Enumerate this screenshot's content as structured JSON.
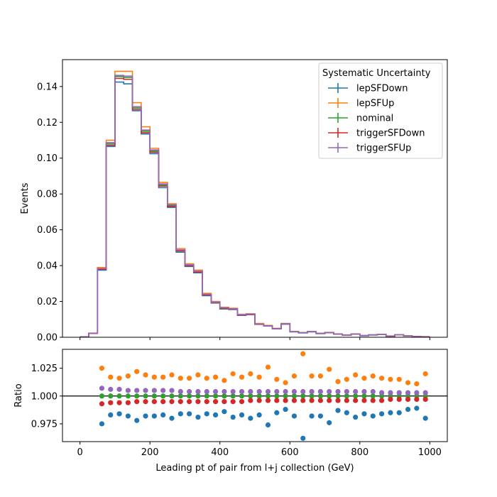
{
  "chart_data": [
    {
      "type": "line",
      "ylabel": "Events",
      "xlabel": "",
      "xlim": [
        -50,
        1050
      ],
      "ylim": [
        0,
        0.155
      ],
      "x_ticks": [
        0,
        200,
        400,
        600,
        800,
        1000
      ],
      "y_ticks": [
        "0.00",
        "0.02",
        "0.04",
        "0.06",
        "0.08",
        "0.10",
        "0.12",
        "0.14"
      ],
      "y_tick_values": [
        0,
        0.02,
        0.04,
        0.06,
        0.08,
        0.1,
        0.12,
        0.14
      ],
      "x_tick_labels_shown": false,
      "bin_edges": [
        0,
        25,
        50,
        75,
        100,
        125,
        150,
        175,
        200,
        225,
        250,
        275,
        300,
        325,
        350,
        375,
        400,
        425,
        450,
        475,
        500,
        525,
        550,
        575,
        600,
        625,
        650,
        675,
        700,
        725,
        750,
        775,
        800,
        825,
        850,
        875,
        900,
        925,
        950,
        975,
        1000
      ],
      "legend": {
        "title": "Systematic Uncertainty",
        "placement": "top-right"
      },
      "series": [
        {
          "name": "lepSFDown",
          "color": "#1f77b4",
          "values": [
            0.0003,
            0.0022,
            0.0375,
            0.1065,
            0.1425,
            0.1415,
            0.1265,
            0.1135,
            0.1025,
            0.0835,
            0.0725,
            0.0475,
            0.0395,
            0.036,
            0.0232,
            0.0191,
            0.0158,
            0.0155,
            0.0122,
            0.0126,
            0.0072,
            0.0063,
            0.0047,
            0.0073,
            0.003,
            0.0024,
            0.003,
            0.002,
            0.0025,
            0.0017,
            0.0012,
            0.0017,
            0.0008,
            0.0012,
            0.0015,
            0.0006,
            0.0013,
            0.0007,
            0.0004,
            0.0003
          ]
        },
        {
          "name": "lepSFUp",
          "color": "#ff7f0e",
          "values": [
            0.0003,
            0.0023,
            0.039,
            0.11,
            0.1485,
            0.1485,
            0.131,
            0.1175,
            0.1055,
            0.0865,
            0.0745,
            0.0495,
            0.041,
            0.0375,
            0.0245,
            0.02,
            0.0168,
            0.0162,
            0.0128,
            0.0131,
            0.0077,
            0.0066,
            0.005,
            0.0077,
            0.0032,
            0.0026,
            0.0032,
            0.0022,
            0.0027,
            0.0018,
            0.0013,
            0.0018,
            0.0009,
            0.0013,
            0.0016,
            0.0007,
            0.0014,
            0.0008,
            0.0005,
            0.0004
          ]
        },
        {
          "name": "nominal",
          "color": "#2ca02c",
          "values": [
            0.0003,
            0.0022,
            0.0382,
            0.108,
            0.1455,
            0.145,
            0.128,
            0.115,
            0.104,
            0.085,
            0.0735,
            0.0485,
            0.0402,
            0.0367,
            0.0238,
            0.0195,
            0.0163,
            0.0158,
            0.0125,
            0.0128,
            0.0074,
            0.0064,
            0.0048,
            0.0075,
            0.0031,
            0.0025,
            0.0031,
            0.0021,
            0.0026,
            0.0018,
            0.0012,
            0.0018,
            0.0009,
            0.0013,
            0.0015,
            0.0006,
            0.0013,
            0.0007,
            0.0004,
            0.0003
          ]
        },
        {
          "name": "triggerSFDown",
          "color": "#d62728",
          "values": [
            0.0003,
            0.0022,
            0.038,
            0.1072,
            0.1445,
            0.144,
            0.1272,
            0.1142,
            0.1033,
            0.0844,
            0.073,
            0.0482,
            0.04,
            0.0365,
            0.0236,
            0.0194,
            0.0162,
            0.0157,
            0.0124,
            0.0127,
            0.0073,
            0.0063,
            0.0048,
            0.0074,
            0.0031,
            0.0025,
            0.0031,
            0.0021,
            0.0026,
            0.0018,
            0.0012,
            0.0018,
            0.0009,
            0.0013,
            0.0015,
            0.0006,
            0.0013,
            0.0007,
            0.0004,
            0.0003
          ]
        },
        {
          "name": "triggerSFUp",
          "color": "#9467bd",
          "values": [
            0.0003,
            0.0022,
            0.0384,
            0.1087,
            0.1462,
            0.1458,
            0.1287,
            0.1157,
            0.1046,
            0.0856,
            0.074,
            0.0488,
            0.0404,
            0.0369,
            0.024,
            0.0196,
            0.0164,
            0.0159,
            0.0126,
            0.0129,
            0.0074,
            0.0064,
            0.0048,
            0.0075,
            0.0031,
            0.0025,
            0.0031,
            0.0021,
            0.0026,
            0.0018,
            0.0012,
            0.0018,
            0.0009,
            0.0013,
            0.0015,
            0.0006,
            0.0013,
            0.0007,
            0.0004,
            0.0003
          ]
        }
      ]
    },
    {
      "type": "scatter",
      "ylabel": "Ratio",
      "xlabel": "Leading pt of pair from l+j collection (GeV)",
      "xlim": [
        -50,
        1050
      ],
      "ylim": [
        0.959,
        1.042
      ],
      "x_ticks": [
        "0",
        "200",
        "400",
        "600",
        "800",
        "1000"
      ],
      "x_tick_values": [
        0,
        200,
        400,
        600,
        800,
        1000
      ],
      "y_ticks": [
        "0.975",
        "1.000",
        "1.025"
      ],
      "y_tick_values": [
        0.975,
        1.0,
        1.025
      ],
      "reference_line": 1.0,
      "x": [
        62.5,
        87.5,
        112.5,
        137.5,
        162.5,
        187.5,
        212.5,
        237.5,
        262.5,
        287.5,
        312.5,
        337.5,
        362.5,
        387.5,
        412.5,
        437.5,
        462.5,
        487.5,
        512.5,
        537.5,
        562.5,
        587.5,
        612.5,
        637.5,
        662.5,
        687.5,
        712.5,
        737.5,
        762.5,
        787.5,
        812.5,
        837.5,
        862.5,
        887.5,
        912.5,
        937.5,
        962.5,
        987.5
      ],
      "series": [
        {
          "name": "lepSFDown",
          "color": "#1f77b4",
          "values": [
            0.975,
            0.983,
            0.984,
            0.982,
            0.978,
            0.982,
            0.982,
            0.983,
            0.98,
            0.984,
            0.984,
            0.981,
            0.984,
            0.983,
            0.986,
            0.981,
            0.983,
            0.98,
            0.983,
            0.974,
            0.985,
            0.988,
            0.982,
            0.962,
            0.982,
            0.982,
            0.976,
            0.987,
            0.985,
            0.981,
            0.984,
            0.982,
            0.984,
            0.985,
            0.985,
            0.988,
            0.989,
            0.98
          ]
        },
        {
          "name": "lepSFUp",
          "color": "#ff7f0e",
          "values": [
            1.025,
            1.017,
            1.016,
            1.018,
            1.022,
            1.019,
            1.017,
            1.017,
            1.019,
            1.016,
            1.016,
            1.019,
            1.016,
            1.017,
            1.014,
            1.02,
            1.017,
            1.02,
            1.017,
            1.026,
            1.015,
            1.012,
            1.018,
            1.038,
            1.018,
            1.018,
            1.024,
            1.013,
            1.015,
            1.019,
            1.016,
            1.018,
            1.016,
            1.015,
            1.015,
            1.012,
            1.011,
            1.02
          ]
        },
        {
          "name": "nominal",
          "color": "#2ca02c",
          "values": [
            1,
            1,
            1,
            1,
            1,
            1,
            1,
            1,
            1,
            1,
            1,
            1,
            1,
            1,
            1,
            1,
            1,
            1,
            1,
            1,
            1,
            1,
            1,
            1,
            1,
            1,
            1,
            1,
            1,
            1,
            1,
            1,
            1,
            1,
            1,
            1,
            1,
            1
          ]
        },
        {
          "name": "triggerSFDown",
          "color": "#d62728",
          "values": [
            0.993,
            0.994,
            0.994,
            0.994,
            0.995,
            0.995,
            0.995,
            0.995,
            0.995,
            0.995,
            0.995,
            0.995,
            0.995,
            0.995,
            0.995,
            0.995,
            0.995,
            0.996,
            0.996,
            0.996,
            0.996,
            0.996,
            0.996,
            0.996,
            0.996,
            0.996,
            0.996,
            0.996,
            0.996,
            0.996,
            0.996,
            0.996,
            0.996,
            0.997,
            0.997,
            0.997,
            0.997,
            0.997
          ]
        },
        {
          "name": "triggerSFUp",
          "color": "#9467bd",
          "values": [
            1.007,
            1.006,
            1.006,
            1.005,
            1.005,
            1.005,
            1.005,
            1.005,
            1.005,
            1.004,
            1.004,
            1.004,
            1.004,
            1.004,
            1.004,
            1.004,
            1.004,
            1.004,
            1.004,
            1.004,
            1.004,
            1.004,
            1.004,
            1.004,
            1.004,
            1.004,
            1.004,
            1.004,
            1.004,
            1.004,
            1.004,
            1.004,
            1.003,
            1.003,
            1.003,
            1.003,
            1.003,
            1.003
          ]
        }
      ]
    }
  ]
}
